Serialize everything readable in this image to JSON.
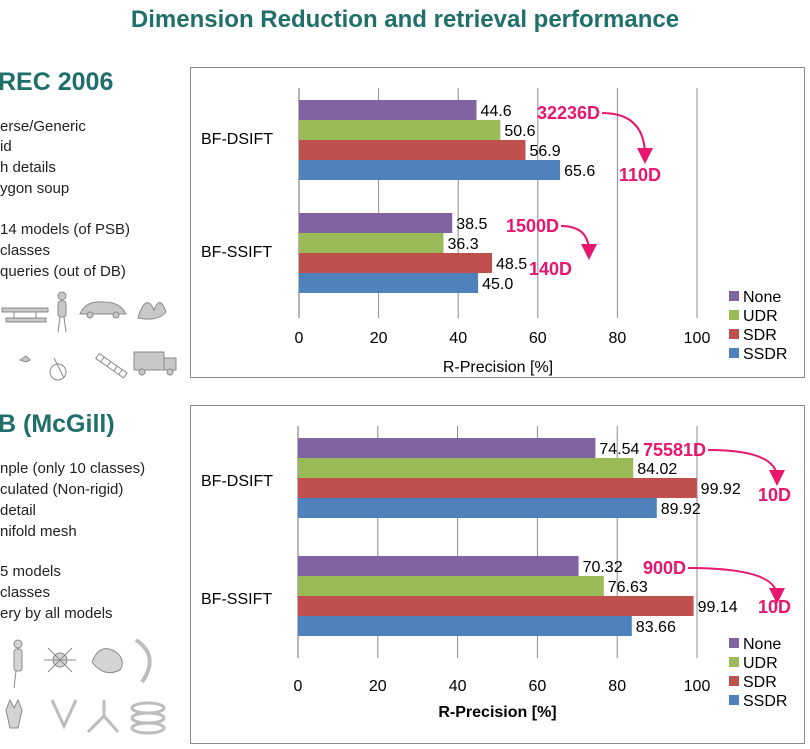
{
  "slide_title": "Dimension Reduction and retrieval performance",
  "left_panel": {
    "section1": {
      "heading": "REC 2006",
      "bullets": [
        "erse/Generic",
        "id",
        "h details",
        "ygon soup",
        "14 models (of PSB)",
        "classes",
        "queries (out of DB)"
      ]
    },
    "section2": {
      "heading": "B (McGill)",
      "bullets": [
        "nple (only 10 classes)",
        "culated (Non-rigid)",
        "detail",
        "nifold mesh",
        "5 models",
        "classes",
        "ery by all models"
      ]
    }
  },
  "colors": {
    "None": "#8064a2",
    "UDR": "#9bbb59",
    "SDR": "#c0504d",
    "SSDR": "#4f81bd",
    "accent": "#e8166e",
    "title": "#1f6f6a"
  },
  "chart_data": [
    {
      "type": "bar",
      "orientation": "horizontal",
      "categories": [
        "BF-DSIFT",
        "BF-SSIFT"
      ],
      "series": [
        {
          "name": "None",
          "values": [
            44.6,
            38.5
          ],
          "labels": [
            "44.6",
            "38.5"
          ]
        },
        {
          "name": "UDR",
          "values": [
            50.6,
            36.3
          ],
          "labels": [
            "50.6",
            "36.3"
          ]
        },
        {
          "name": "SDR",
          "values": [
            56.9,
            48.5
          ],
          "labels": [
            "56.9",
            "48.5"
          ]
        },
        {
          "name": "SSDR",
          "values": [
            65.6,
            45.0
          ],
          "labels": [
            "65.6",
            "45.0"
          ]
        }
      ],
      "xlabel": "R-Precision [%]",
      "xlim": [
        0,
        100
      ],
      "xticks": [
        "0",
        "20",
        "40",
        "60",
        "80",
        "100"
      ],
      "grid": true,
      "legend_position": "bottom-right",
      "annotations": [
        {
          "category": "BF-DSIFT",
          "from": "32236D",
          "to": "110D"
        },
        {
          "category": "BF-SSIFT",
          "from": "1500D",
          "to": "140D"
        }
      ]
    },
    {
      "type": "bar",
      "orientation": "horizontal",
      "categories": [
        "BF-DSIFT",
        "BF-SSIFT"
      ],
      "series": [
        {
          "name": "None",
          "values": [
            74.54,
            70.32
          ],
          "labels": [
            "74.54",
            "70.32"
          ]
        },
        {
          "name": "UDR",
          "values": [
            84.02,
            76.63
          ],
          "labels": [
            "84.02",
            "76.63"
          ]
        },
        {
          "name": "SDR",
          "values": [
            99.92,
            99.14
          ],
          "labels": [
            "99.92",
            "99.14"
          ]
        },
        {
          "name": "SSDR",
          "values": [
            89.92,
            83.66
          ],
          "labels": [
            "89.92",
            "83.66"
          ]
        }
      ],
      "xlabel": "R-Precision [%]",
      "xlim": [
        0,
        100
      ],
      "xticks": [
        "0",
        "20",
        "40",
        "60",
        "80",
        "100"
      ],
      "grid": true,
      "legend_position": "bottom-right",
      "annotations": [
        {
          "category": "BF-DSIFT",
          "from": "75581D",
          "to": "10D"
        },
        {
          "category": "BF-SSIFT",
          "from": "900D",
          "to": "10D"
        }
      ]
    }
  ]
}
